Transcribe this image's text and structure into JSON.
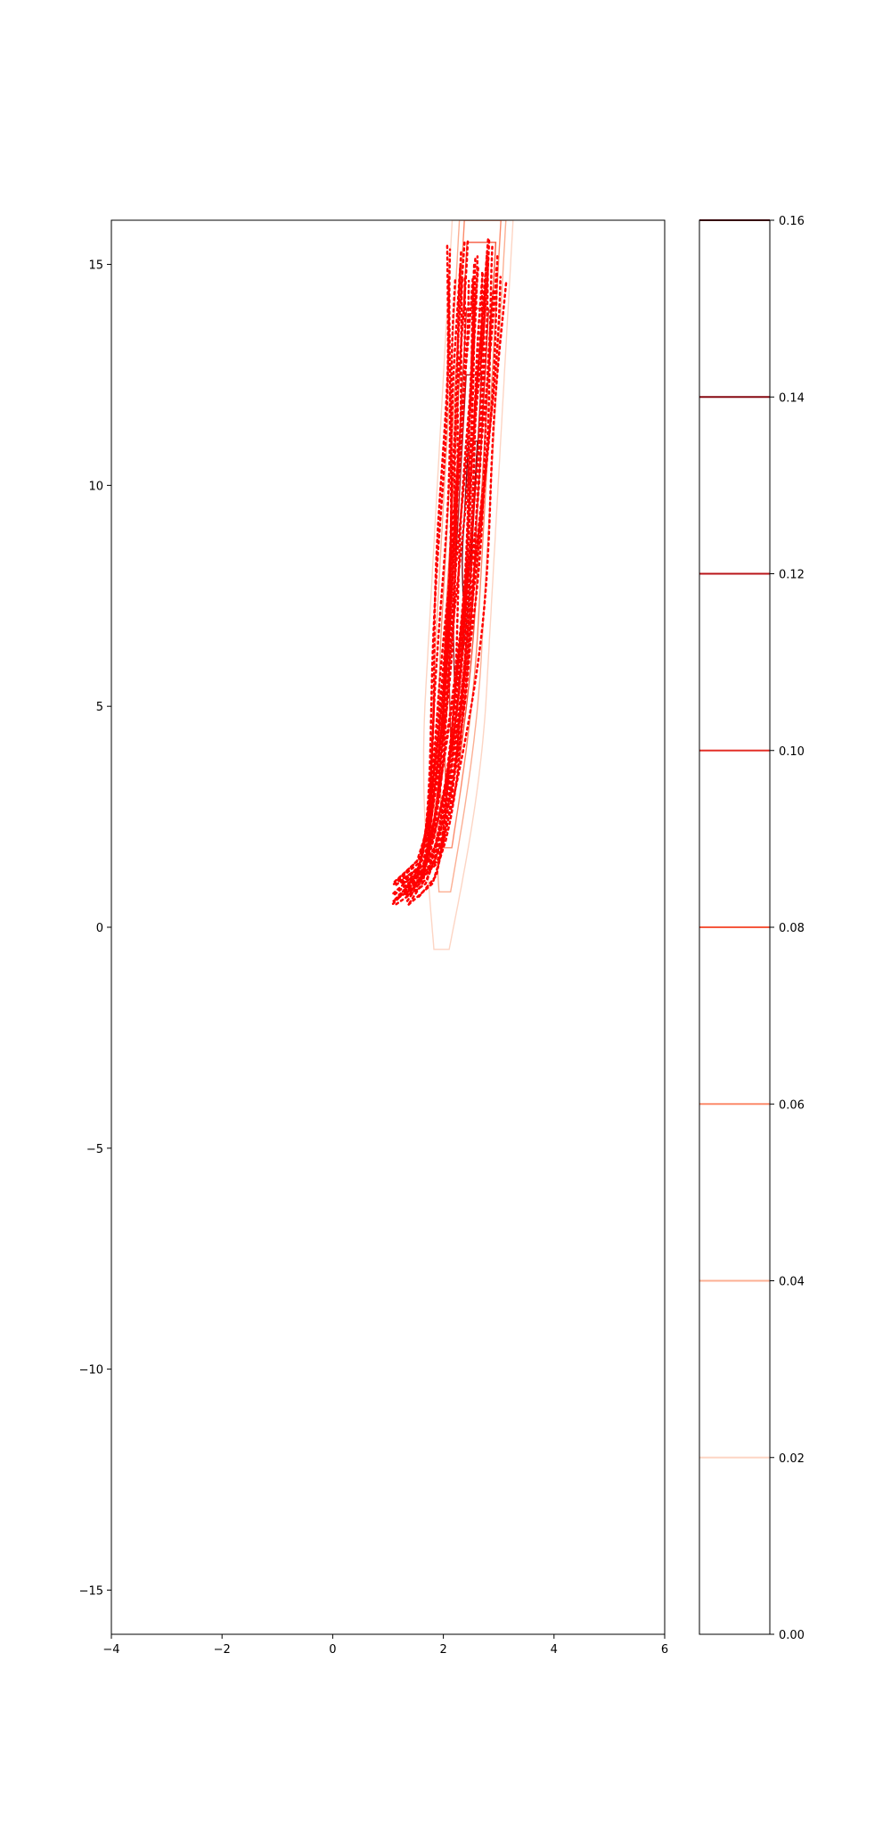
{
  "chart_data": {
    "type": "contour",
    "title": "",
    "xlabel": "",
    "ylabel": "",
    "xlim": [
      -4,
      6
    ],
    "ylim": [
      -16,
      16
    ],
    "x_ticks": [
      -4,
      -2,
      0,
      2,
      4,
      6
    ],
    "y_ticks": [
      -15,
      -10,
      -5,
      0,
      5,
      10,
      15
    ],
    "x_tick_labels": [
      "−4",
      "−2",
      "0",
      "2",
      "4",
      "6"
    ],
    "y_tick_labels": [
      "−15",
      "−10",
      "−5",
      "0",
      "5",
      "10",
      "15"
    ],
    "grid": false,
    "colormap": "Reds",
    "colorbar": {
      "range": [
        0.0,
        0.16
      ],
      "levels": [
        0.02,
        0.04,
        0.06,
        0.08,
        0.1,
        0.12,
        0.14,
        0.16
      ],
      "tick_values": [
        0.0,
        0.02,
        0.04,
        0.06,
        0.08,
        0.1,
        0.12,
        0.14,
        0.16
      ],
      "tick_labels": [
        "0.00",
        "0.02",
        "0.04",
        "0.06",
        "0.08",
        "0.10",
        "0.12",
        "0.14",
        "0.16"
      ],
      "level_colors": [
        "#fdd5c4",
        "#fcaf93",
        "#fc8a6a",
        "#f6583e",
        "#e32f27",
        "#b91419",
        "#860811",
        "#67000d"
      ]
    },
    "contours": [
      {
        "level": 0.02,
        "cx": 2.35,
        "y_min": -0.5,
        "y_max": 16,
        "half_width": 0.55,
        "slope": 0.045
      },
      {
        "level": 0.04,
        "cx": 2.35,
        "y_min": 0.8,
        "y_max": 16,
        "half_width": 0.42,
        "slope": 0.045
      },
      {
        "level": 0.06,
        "cx": 2.35,
        "y_min": 1.8,
        "y_max": 16,
        "half_width": 0.33,
        "slope": 0.045
      },
      {
        "level": 0.08,
        "cx": 2.35,
        "y_min": 2.8,
        "y_max": 15.5,
        "half_width": 0.26,
        "slope": 0.045
      },
      {
        "level": 0.1,
        "cx": 2.35,
        "y_min": 4.3,
        "y_max": 14,
        "half_width": 0.2,
        "slope": 0.045
      },
      {
        "level": 0.12,
        "cx": 2.35,
        "y_min": 5.5,
        "y_max": 12.5,
        "half_width": 0.14,
        "slope": 0.045
      },
      {
        "level": 0.14,
        "cx": 2.4,
        "y_min": 7.5,
        "y_max": 11,
        "half_width": 0.08,
        "slope": 0.045
      }
    ],
    "trajectories": {
      "color": "#ff0000",
      "style": "dotted",
      "count": 30,
      "start": [
        1.3,
        0.8
      ],
      "end": [
        2.6,
        15.0
      ],
      "x_spread": 0.9,
      "y_spread": 1.2
    }
  }
}
